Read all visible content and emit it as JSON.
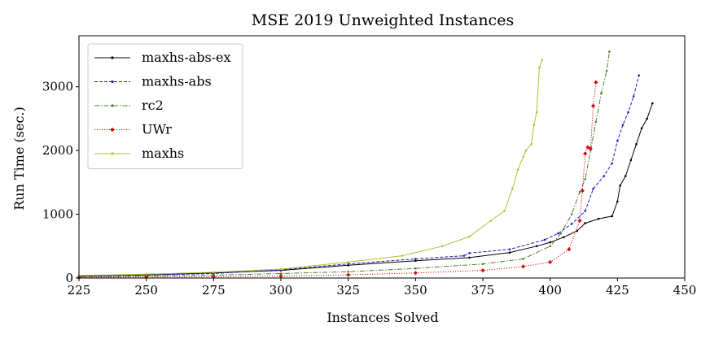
{
  "chart_data": {
    "type": "line",
    "title": "MSE 2019 Unweighted Instances",
    "xlabel": "Instances Solved",
    "ylabel": "Run Time (sec.)",
    "xlim": [
      225,
      450
    ],
    "ylim": [
      0,
      3800
    ],
    "xticks": [
      225,
      250,
      275,
      300,
      325,
      350,
      375,
      400,
      425,
      450
    ],
    "yticks": [
      0,
      1000,
      2000,
      3000
    ],
    "grid": false,
    "legend_position": "top-left",
    "series": [
      {
        "name": "maxhs-abs-ex",
        "color": "#000000",
        "line_style": "solid",
        "marker": "dot",
        "x": [
          225,
          250,
          275,
          300,
          325,
          350,
          370,
          385,
          395,
          400,
          405,
          410,
          413,
          418,
          423,
          425,
          426,
          428,
          430,
          432,
          434,
          436,
          438
        ],
        "y": [
          30,
          50,
          80,
          120,
          200,
          270,
          320,
          400,
          500,
          560,
          640,
          740,
          860,
          930,
          970,
          1200,
          1450,
          1600,
          1850,
          2100,
          2350,
          2500,
          2740
        ]
      },
      {
        "name": "maxhs-abs",
        "color": "#1f1fbf",
        "line_style": "dashed",
        "marker": "dot",
        "x": [
          225,
          250,
          275,
          300,
          325,
          350,
          368,
          370,
          385,
          398,
          403,
          408,
          413,
          416,
          420,
          423,
          425,
          427,
          429,
          431,
          433
        ],
        "y": [
          25,
          45,
          70,
          130,
          220,
          300,
          350,
          390,
          450,
          600,
          700,
          850,
          1050,
          1400,
          1600,
          1800,
          2150,
          2400,
          2600,
          2850,
          3180
        ]
      },
      {
        "name": "rc2",
        "color": "#4f7f2f",
        "line_style": "dashdot",
        "marker": "dot",
        "x": [
          225,
          250,
          275,
          300,
          325,
          350,
          375,
          390,
          400,
          404,
          408,
          411,
          413,
          415,
          417,
          419,
          421,
          422
        ],
        "y": [
          20,
          30,
          45,
          70,
          100,
          150,
          220,
          300,
          500,
          700,
          1000,
          1350,
          1550,
          2000,
          2450,
          2900,
          3250,
          3550
        ]
      },
      {
        "name": "UWr",
        "color": "#cc1111",
        "line_style": "dotted",
        "marker": "diamond",
        "x": [
          225,
          250,
          275,
          300,
          325,
          350,
          375,
          390,
          400,
          407,
          411,
          412,
          413,
          414,
          415,
          416,
          417
        ],
        "y": [
          10,
          15,
          20,
          30,
          50,
          80,
          120,
          180,
          250,
          450,
          900,
          1370,
          1950,
          2050,
          2030,
          2700,
          3070
        ]
      },
      {
        "name": "maxhs",
        "color": "#b2bf3a",
        "line_style": "solid",
        "marker": "dot",
        "x": [
          225,
          250,
          275,
          300,
          325,
          345,
          360,
          370,
          378,
          383,
          386,
          388,
          390,
          391,
          393,
          394,
          395,
          396,
          397
        ],
        "y": [
          40,
          60,
          90,
          140,
          250,
          350,
          500,
          650,
          900,
          1050,
          1400,
          1700,
          1900,
          2000,
          2100,
          2400,
          2600,
          3300,
          3420
        ]
      }
    ]
  }
}
